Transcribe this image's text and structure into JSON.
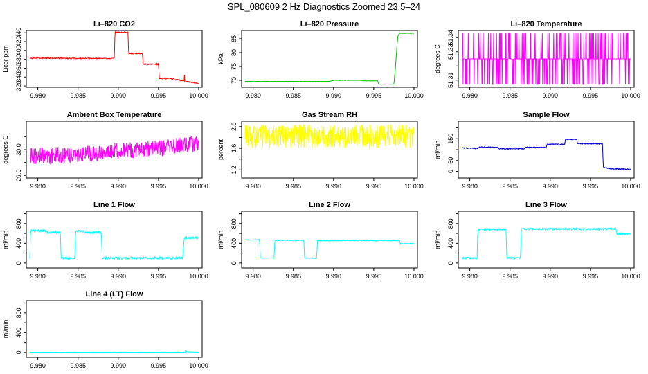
{
  "page": {
    "title": "SPL_080609  2 Hz Diagnostics Zoomed 23.5–24"
  },
  "chart_data": [
    {
      "type": "line",
      "title": "Li–820 CO2",
      "ylabel": "Licor ppm",
      "color": "#ff0000",
      "xlim": [
        9.979,
        10.0
      ],
      "xticks": [
        "9.980",
        "9.985",
        "9.990",
        "9.995",
        "10.000"
      ],
      "ylim": [
        317,
        445
      ],
      "yticks": [
        320,
        340,
        360,
        380,
        400,
        420,
        440
      ],
      "series": [
        {
          "name": "CO2",
          "noise": 1.2,
          "points": [
            [
              9.979,
              382
            ],
            [
              9.98,
              383
            ],
            [
              9.985,
              382
            ],
            [
              9.9895,
              382
            ],
            [
              9.9896,
              441
            ],
            [
              9.9912,
              441
            ],
            [
              9.9913,
              393
            ],
            [
              9.993,
              393
            ],
            [
              9.9931,
              369
            ],
            [
              9.995,
              369
            ],
            [
              9.9951,
              337
            ],
            [
              9.9965,
              337
            ],
            [
              9.9966,
              336
            ],
            [
              9.9982,
              332
            ],
            [
              9.99823,
              349
            ],
            [
              9.99826,
              330
            ],
            [
              10.0,
              326
            ]
          ]
        }
      ]
    },
    {
      "type": "line",
      "title": "Li–820 Pressure",
      "ylabel": "kPa",
      "color": "#00c000",
      "xlim": [
        9.979,
        10.0
      ],
      "xticks": [
        "9.980",
        "9.985",
        "9.990",
        "9.995",
        "10.000"
      ],
      "ylim": [
        67.5,
        88
      ],
      "yticks": [
        70,
        75,
        80,
        85
      ],
      "series": [
        {
          "name": "Pressure",
          "noise": 0.05,
          "points": [
            [
              9.979,
              69.6
            ],
            [
              9.985,
              69.6
            ],
            [
              9.9895,
              69.6
            ],
            [
              9.99,
              70.0
            ],
            [
              9.9935,
              70.0
            ],
            [
              9.9936,
              69.8
            ],
            [
              9.9955,
              69.8
            ],
            [
              9.9956,
              68.6
            ],
            [
              9.9975,
              68.6
            ],
            [
              9.9977,
              75.0
            ],
            [
              9.9979,
              83.0
            ],
            [
              9.998,
              86.0
            ],
            [
              9.9982,
              87.0
            ],
            [
              10.0,
              87.0
            ]
          ]
        }
      ]
    },
    {
      "type": "line",
      "title": "Li–820 Temperature",
      "ylabel": "degrees C",
      "color": "#ff00ff",
      "xlim": [
        9.979,
        10.0
      ],
      "xticks": [
        "9.980",
        "9.985",
        "9.990",
        "9.995",
        "10.000"
      ],
      "ylim": [
        51.305,
        51.345
      ],
      "yticks": [
        51.31,
        51.32,
        51.33,
        51.34
      ],
      "ytick_labels": [
        "51.31",
        "",
        "51.33",
        "51.34"
      ],
      "series": [
        {
          "name": "Temperature",
          "kind": "quantized",
          "base": 51.325,
          "low": 51.307,
          "high": 51.343
        }
      ]
    },
    {
      "type": "line",
      "title": "Ambient Box Temperature",
      "ylabel": "degrees C",
      "color": "#ff00ff",
      "xlim": [
        9.979,
        10.0
      ],
      "xticks": [
        "9.980",
        "9.985",
        "9.990",
        "9.995",
        "10.000"
      ],
      "ylim": [
        28.9,
        31.1
      ],
      "yticks": [
        29.0,
        29.5,
        30.0,
        30.5
      ],
      "ytick_labels": [
        "29.0",
        "",
        "30.0",
        ""
      ],
      "series": [
        {
          "name": "Ambient",
          "noise": 0.32,
          "seed": 7,
          "points": [
            [
              9.979,
              29.75
            ],
            [
              9.985,
              29.8
            ],
            [
              9.99,
              29.95
            ],
            [
              9.995,
              30.05
            ],
            [
              10.0,
              30.25
            ]
          ]
        }
      ]
    },
    {
      "type": "line",
      "title": "Gas Stream RH",
      "ylabel": "percent",
      "color": "#ffff00",
      "xlim": [
        9.979,
        10.0
      ],
      "xticks": [
        "9.980",
        "9.985",
        "9.990",
        "9.995",
        "10.000"
      ],
      "ylim": [
        1.05,
        2.1
      ],
      "yticks": [
        1.2,
        1.4,
        1.6,
        1.8,
        2.0
      ],
      "ytick_labels": [
        "1.2",
        "",
        "1.6",
        "",
        "2.0"
      ],
      "series": [
        {
          "name": "RH",
          "noise": 0.22,
          "seed": 11,
          "points": [
            [
              9.979,
              1.82
            ],
            [
              10.0,
              1.82
            ]
          ]
        }
      ]
    },
    {
      "type": "line",
      "title": "Sample Flow",
      "ylabel": "ml/min",
      "color": "#0000cc",
      "xlim": [
        9.979,
        10.0
      ],
      "xticks": [
        "9.980",
        "9.985",
        "9.990",
        "9.995",
        "10.000"
      ],
      "ylim": [
        -30,
        230
      ],
      "yticks": [
        0,
        50,
        100,
        150,
        200
      ],
      "ytick_labels": [
        "0",
        "50",
        "",
        "150",
        ""
      ],
      "series": [
        {
          "name": "Sample",
          "noise": 2,
          "points": [
            [
              9.979,
              108
            ],
            [
              9.981,
              105
            ],
            [
              9.9812,
              112
            ],
            [
              9.9835,
              110
            ],
            [
              9.9836,
              104
            ],
            [
              9.9868,
              104
            ],
            [
              9.9869,
              110
            ],
            [
              9.9895,
              110
            ],
            [
              9.9896,
              125
            ],
            [
              9.991,
              125
            ],
            [
              9.9911,
              123
            ],
            [
              9.9918,
              125
            ],
            [
              9.9919,
              147
            ],
            [
              9.9933,
              147
            ],
            [
              9.9934,
              127
            ],
            [
              9.9965,
              127
            ],
            [
              9.9966,
              20
            ],
            [
              9.9975,
              12
            ],
            [
              10.0,
              10
            ]
          ]
        }
      ]
    },
    {
      "type": "line",
      "title": "Line 1 Flow",
      "ylabel": "ml/min",
      "color": "#00ffff",
      "xlim": [
        9.979,
        10.0
      ],
      "xticks": [
        "9.980",
        "9.985",
        "9.990",
        "9.995",
        "10.000"
      ],
      "ylim": [
        -100,
        1050
      ],
      "yticks": [
        0,
        200,
        400,
        600,
        800,
        1000
      ],
      "ytick_labels": [
        "0",
        "",
        "400",
        "",
        "800",
        ""
      ],
      "series": [
        {
          "name": "Line1",
          "noise": 22,
          "points": [
            [
              9.979,
              90
            ],
            [
              9.9791,
              660
            ],
            [
              9.981,
              650
            ],
            [
              9.9812,
              620
            ],
            [
              9.9828,
              620
            ],
            [
              9.9829,
              100
            ],
            [
              9.9846,
              100
            ],
            [
              9.9847,
              650
            ],
            [
              9.9857,
              650
            ],
            [
              9.9858,
              620
            ],
            [
              9.9879,
              620
            ],
            [
              9.988,
              100
            ],
            [
              9.998,
              100
            ],
            [
              9.9982,
              510
            ],
            [
              10.0,
              520
            ]
          ]
        }
      ]
    },
    {
      "type": "line",
      "title": "Line 2 Flow",
      "ylabel": "ml/min",
      "color": "#00ffff",
      "xlim": [
        9.979,
        10.0
      ],
      "xticks": [
        "9.980",
        "9.985",
        "9.990",
        "9.995",
        "10.000"
      ],
      "ylim": [
        -100,
        1050
      ],
      "yticks": [
        0,
        200,
        400,
        600,
        800,
        1000
      ],
      "ytick_labels": [
        "0",
        "",
        "400",
        "",
        "800",
        ""
      ],
      "series": [
        {
          "name": "Line2",
          "noise": 9,
          "points": [
            [
              9.979,
              470
            ],
            [
              9.9808,
              470
            ],
            [
              9.9809,
              100
            ],
            [
              9.9826,
              100
            ],
            [
              9.9827,
              460
            ],
            [
              9.9863,
              460
            ],
            [
              9.9864,
              100
            ],
            [
              9.9879,
              100
            ],
            [
              9.988,
              455
            ],
            [
              9.9982,
              455
            ],
            [
              9.9983,
              390
            ],
            [
              10.0,
              395
            ]
          ]
        }
      ]
    },
    {
      "type": "line",
      "title": "Line 3 Flow",
      "ylabel": "ml/min",
      "color": "#00ffff",
      "xlim": [
        9.979,
        10.0
      ],
      "xticks": [
        "9.980",
        "9.985",
        "9.990",
        "9.995",
        "10.000"
      ],
      "ylim": [
        -100,
        1050
      ],
      "yticks": [
        0,
        200,
        400,
        600,
        800,
        1000
      ],
      "ytick_labels": [
        "0",
        "",
        "400",
        "",
        "800",
        ""
      ],
      "series": [
        {
          "name": "Line3",
          "noise": 18,
          "points": [
            [
              9.979,
              100
            ],
            [
              9.9809,
              100
            ],
            [
              9.981,
              680
            ],
            [
              9.9845,
              680
            ],
            [
              9.9846,
              100
            ],
            [
              9.9863,
              100
            ],
            [
              9.9864,
              690
            ],
            [
              9.9982,
              690
            ],
            [
              9.9983,
              590
            ],
            [
              10.0,
              590
            ]
          ]
        }
      ]
    },
    {
      "type": "line",
      "title": "Line 4 (LT) Flow",
      "ylabel": "ml/min",
      "color": "#00ffff",
      "xlim": [
        9.979,
        10.0
      ],
      "xticks": [
        "9.980",
        "9.985",
        "9.990",
        "9.995",
        "10.000"
      ],
      "ylim": [
        -100,
        1050
      ],
      "yticks": [
        0,
        200,
        400,
        600,
        800,
        1000
      ],
      "ytick_labels": [
        "0",
        "",
        "400",
        "",
        "800",
        ""
      ],
      "series": [
        {
          "name": "Line4",
          "noise": 3,
          "points": [
            [
              9.979,
              5
            ],
            [
              9.9983,
              5
            ],
            [
              9.99835,
              60
            ],
            [
              9.9984,
              15
            ],
            [
              10.0,
              5
            ]
          ]
        }
      ]
    }
  ]
}
